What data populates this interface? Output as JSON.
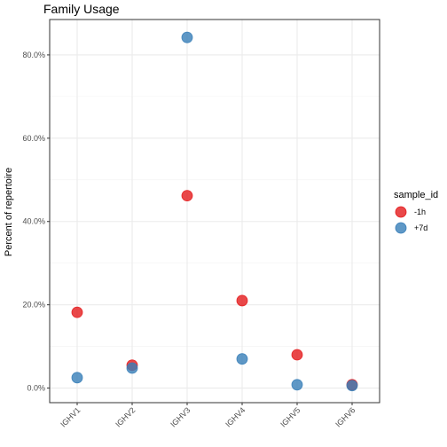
{
  "chart_data": {
    "type": "scatter",
    "title": "Family Usage",
    "xlabel": "",
    "ylabel": "Percent of repertoire",
    "categories": [
      "IGHV1",
      "IGHV2",
      "IGHV3",
      "IGHV4",
      "IGHV5",
      "IGHV6"
    ],
    "y_ticks": [
      0,
      20,
      40,
      60,
      80
    ],
    "y_tick_labels": [
      "0.0%",
      "20.0%",
      "40.0%",
      "60.0%",
      "80.0%"
    ],
    "ylim": [
      -3.5,
      88.5
    ],
    "grid": true,
    "legend": {
      "title": "sample_id",
      "position": "right"
    },
    "series": [
      {
        "name": "-1h",
        "color": "#E41A1C",
        "values": [
          18.2,
          5.5,
          46.2,
          21.0,
          8.0,
          0.8
        ]
      },
      {
        "name": "+7d",
        "color": "#377EB8",
        "values": [
          2.5,
          4.8,
          84.2,
          7.0,
          0.8,
          0.6
        ]
      }
    ]
  }
}
